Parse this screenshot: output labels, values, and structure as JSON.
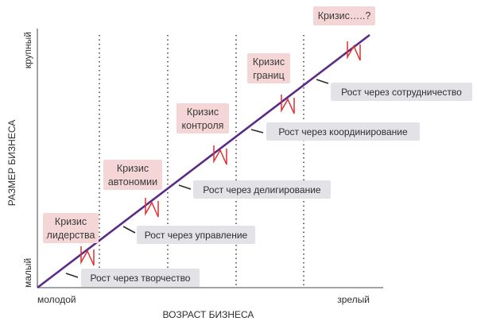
{
  "diagram": {
    "x_axis_title": "ВОЗРАСТ БИЗНЕСА",
    "x_axis_start": "молодой",
    "x_axis_end": "зрелый",
    "y_axis_title": "РАЗМЕР БИЗНЕСА",
    "y_axis_low": "малый",
    "y_axis_high": "крупный",
    "colors": {
      "growth_line": "#5b2a86",
      "crisis_marker": "#e03030",
      "crisis_box": "#f5d6d6",
      "stage_box": "#e3e2e6"
    },
    "stages": [
      {
        "label": "Рост через творчество"
      },
      {
        "label": "Рост через управление"
      },
      {
        "label": "Рост через делигирование"
      },
      {
        "label": "Рост через координирование"
      },
      {
        "label": "Рост через сотрудничество"
      }
    ],
    "crises": [
      {
        "line1": "Кризис",
        "line2": "лидерства"
      },
      {
        "line1": "Кризис",
        "line2": "автономии"
      },
      {
        "line1": "Кризис",
        "line2": "контроля"
      },
      {
        "line1": "Кризис",
        "line2": "границ"
      },
      {
        "line1": "Кризис…..?",
        "line2": ""
      }
    ]
  }
}
